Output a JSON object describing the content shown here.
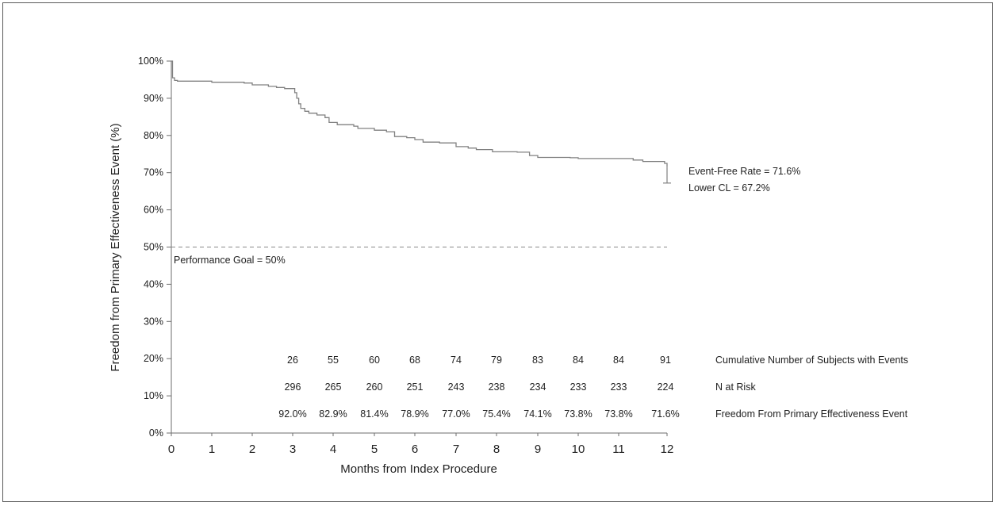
{
  "chart_data": {
    "type": "line",
    "title": "",
    "xlabel": "Months from Index Procedure",
    "ylabel": "Freedom from Primary Effectiveness Event (%)",
    "xlim": [
      0,
      12
    ],
    "ylim": [
      0,
      100
    ],
    "x_ticks": [
      "0",
      "1",
      "2",
      "3",
      "4",
      "5",
      "6",
      "7",
      "8",
      "9",
      "10",
      "11",
      "12"
    ],
    "y_ticks": [
      "0%",
      "10%",
      "20%",
      "30%",
      "40%",
      "50%",
      "60%",
      "70%",
      "80%",
      "90%",
      "100%"
    ],
    "series": [
      {
        "points": [
          [
            0,
            100
          ],
          [
            0.03,
            95.5
          ],
          [
            0.08,
            94.8
          ],
          [
            0.15,
            94.6
          ],
          [
            0.9,
            94.6
          ],
          [
            1.0,
            94.3
          ],
          [
            1.8,
            94.1
          ],
          [
            2.0,
            93.6
          ],
          [
            2.4,
            93.2
          ],
          [
            2.6,
            92.9
          ],
          [
            2.8,
            92.6
          ],
          [
            3.0,
            92.6
          ],
          [
            3.05,
            91.5
          ],
          [
            3.1,
            90
          ],
          [
            3.15,
            88.5
          ],
          [
            3.2,
            87.3
          ],
          [
            3.3,
            86.5
          ],
          [
            3.4,
            86.0
          ],
          [
            3.6,
            85.5
          ],
          [
            3.8,
            84.8
          ],
          [
            3.9,
            83.5
          ],
          [
            4.1,
            82.9
          ],
          [
            4.5,
            82.5
          ],
          [
            4.6,
            81.9
          ],
          [
            5.0,
            81.4
          ],
          [
            5.3,
            81.0
          ],
          [
            5.5,
            79.7
          ],
          [
            5.8,
            79.4
          ],
          [
            6.0,
            78.9
          ],
          [
            6.2,
            78.2
          ],
          [
            6.6,
            78.0
          ],
          [
            7.0,
            77.0
          ],
          [
            7.3,
            76.6
          ],
          [
            7.5,
            76.2
          ],
          [
            7.9,
            75.6
          ],
          [
            8.5,
            75.5
          ],
          [
            8.8,
            74.6
          ],
          [
            9.0,
            74.1
          ],
          [
            9.8,
            74.0
          ],
          [
            10.0,
            73.8
          ],
          [
            11.0,
            73.8
          ],
          [
            11.3,
            73.4
          ],
          [
            11.5,
            73.0
          ],
          [
            11.95,
            72.5
          ],
          [
            12.0,
            71.6
          ]
        ]
      }
    ],
    "performance_goal": 50,
    "lower_cl": 67.2,
    "annotations": {
      "goal": "Performance Goal = 50%",
      "rate": "Event-Free Rate = 71.6%",
      "lower": "Lower CL = 67.2%"
    },
    "table": {
      "months": [
        3,
        4,
        5,
        6,
        7,
        8,
        9,
        10,
        11,
        12
      ],
      "rows": [
        {
          "label": "Cumulative Number of Subjects with Events",
          "values": [
            "26",
            "55",
            "60",
            "68",
            "74",
            "79",
            "83",
            "84",
            "84",
            "91"
          ]
        },
        {
          "label": "N at Risk",
          "values": [
            "296",
            "265",
            "260",
            "251",
            "243",
            "238",
            "234",
            "233",
            "233",
            "224"
          ]
        },
        {
          "label": "Freedom From Primary Effectiveness Event",
          "values": [
            "92.0%",
            "82.9%",
            "81.4%",
            "78.9%",
            "77.0%",
            "75.4%",
            "74.1%",
            "73.8%",
            "73.8%",
            "71.6%"
          ]
        }
      ]
    },
    "grid": false,
    "legend": "none",
    "colors": {
      "line": "#808080",
      "axis": "#6e6e6e",
      "text": "#222222"
    }
  }
}
